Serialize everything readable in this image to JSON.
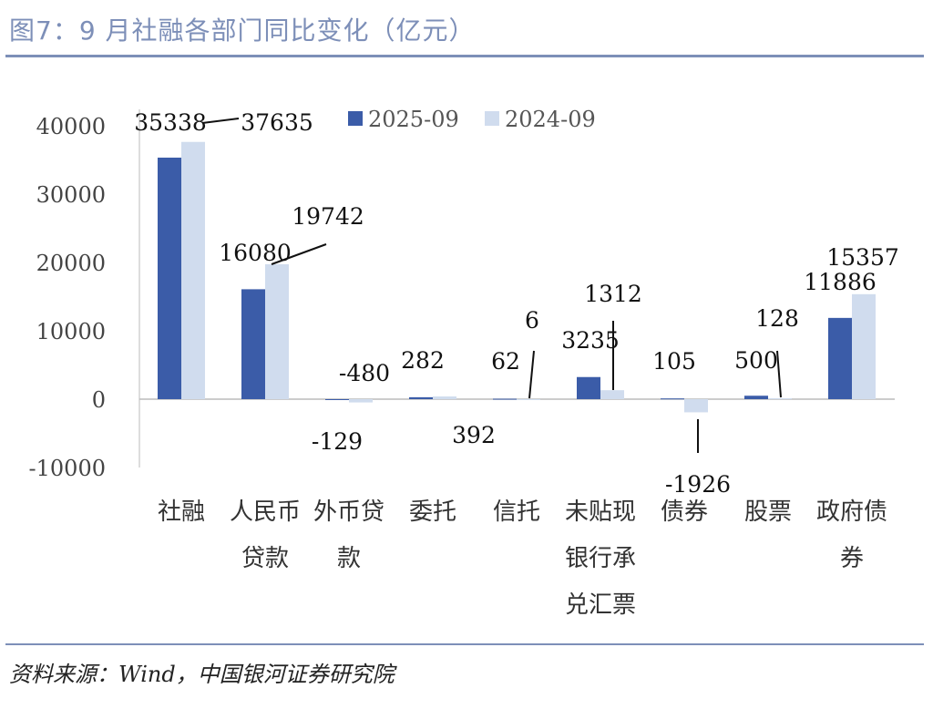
{
  "title": "图7：9 月社融各部门同比变化（亿元）",
  "source": "资料来源：Wind，中国银河证券研究院",
  "chart_data": {
    "type": "bar",
    "title": "图7：9 月社融各部门同比变化（亿元）",
    "xlabel": "",
    "ylabel": "",
    "ylim": [
      -10000,
      40000
    ],
    "yticks": [
      -10000,
      0,
      10000,
      20000,
      30000,
      40000
    ],
    "grid": false,
    "legend_position": "top",
    "categories": [
      "社融",
      "人民币贷款",
      "外币贷款",
      "委托",
      "信托",
      "未贴现银行承兑汇票",
      "债券",
      "股票",
      "政府债券"
    ],
    "series": [
      {
        "name": "2025-09",
        "color": "#3b5ca8",
        "values": [
          35338,
          16080,
          -129,
          282,
          62,
          3235,
          105,
          500,
          11886
        ]
      },
      {
        "name": "2024-09",
        "color": "#d0dcee",
        "values": [
          37635,
          19742,
          -480,
          392,
          6,
          1312,
          -1926,
          128,
          15357
        ]
      }
    ]
  }
}
